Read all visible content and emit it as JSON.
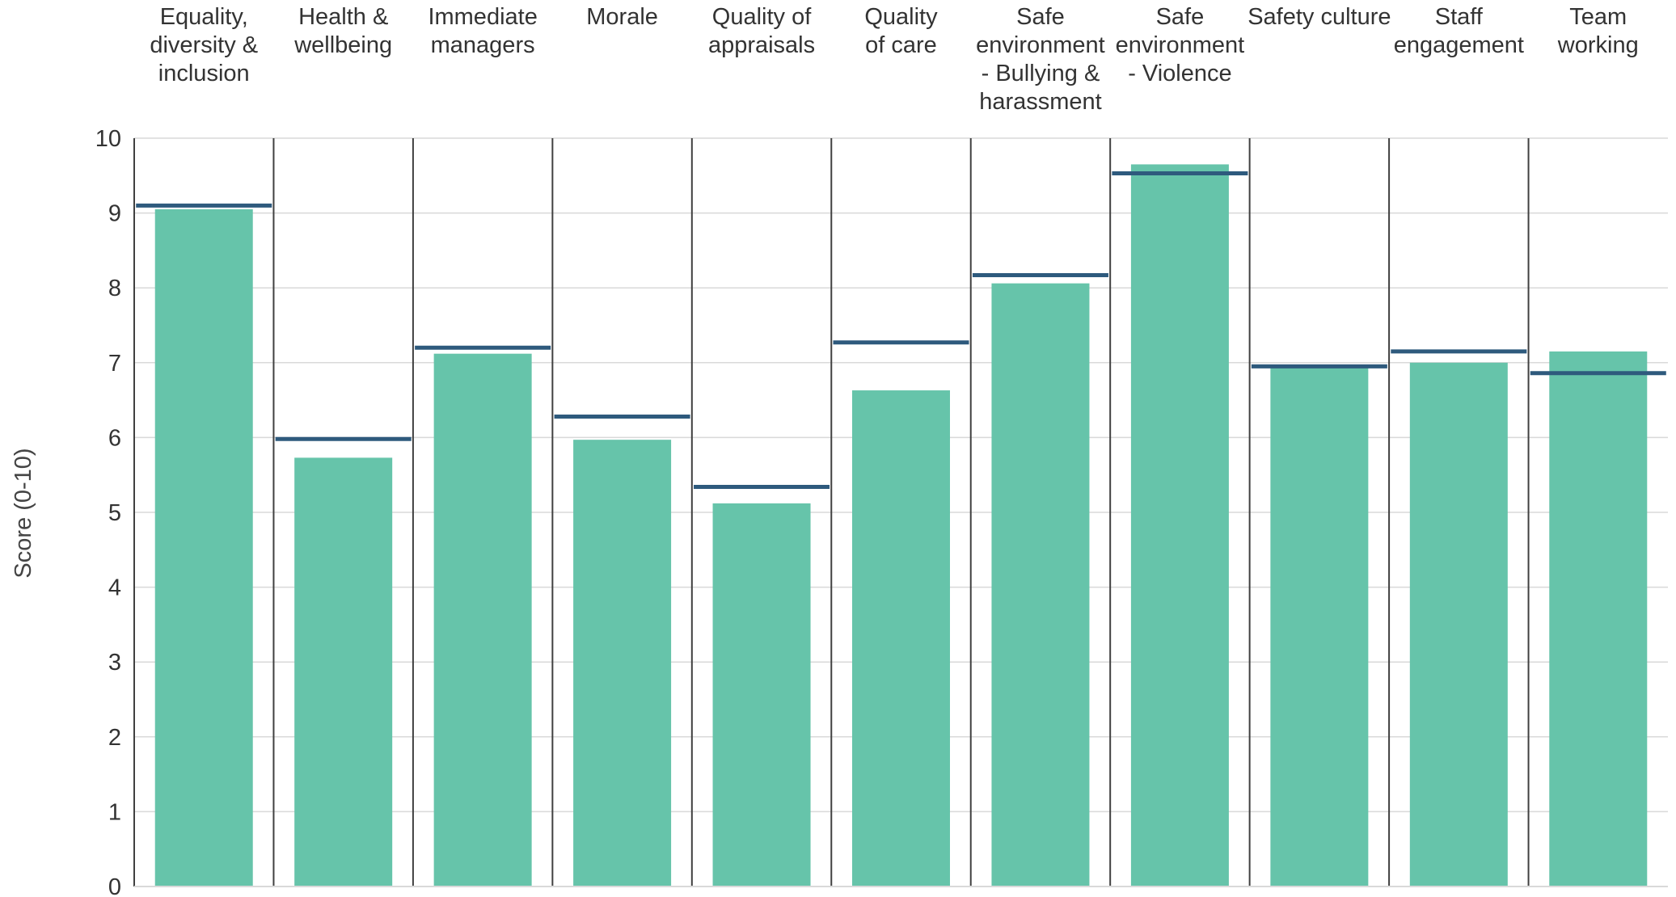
{
  "chart_data": {
    "type": "bar",
    "title": "",
    "xlabel": "",
    "ylabel": "Score (0-10)",
    "ylim": [
      0,
      10
    ],
    "yticks": [
      0,
      1,
      2,
      3,
      4,
      5,
      6,
      7,
      8,
      9,
      10
    ],
    "grid": true,
    "categories": [
      "Equality, diversity & inclusion",
      "Health & wellbeing",
      "Immediate managers",
      "Morale",
      "Quality of appraisals",
      "Quality of care",
      "Safe environment - Bullying & harassment",
      "Safe environment - Violence",
      "Safety culture",
      "Staff engagement",
      "Team working"
    ],
    "category_label_lines": [
      [
        "Equality,",
        "diversity &",
        "inclusion"
      ],
      [
        "Health &",
        "wellbeing"
      ],
      [
        "Immediate",
        "managers"
      ],
      [
        "Morale"
      ],
      [
        "Quality of",
        "appraisals"
      ],
      [
        "Quality",
        "of care"
      ],
      [
        "Safe",
        "environment",
        "- Bullying &",
        "harassment"
      ],
      [
        "Safe",
        "environment",
        "- Violence"
      ],
      [
        "Safety culture"
      ],
      [
        "Staff",
        "engagement"
      ],
      [
        "Team",
        "working"
      ]
    ],
    "series": [
      {
        "type": "bar",
        "color": "#66c4aa",
        "values": [
          9.05,
          5.73,
          7.12,
          5.97,
          5.12,
          6.63,
          8.06,
          9.65,
          6.94,
          7.0,
          7.15
        ]
      },
      {
        "type": "marker-line",
        "color": "#2e5a7d",
        "values": [
          9.1,
          5.98,
          7.2,
          6.28,
          5.34,
          7.27,
          8.17,
          9.53,
          6.95,
          7.15,
          6.86
        ]
      }
    ],
    "colors": {
      "bar": "#66c4aa",
      "marker": "#2e5a7d",
      "grid": "#d9d9d9",
      "separator": "#404040",
      "text": "#333333"
    }
  }
}
